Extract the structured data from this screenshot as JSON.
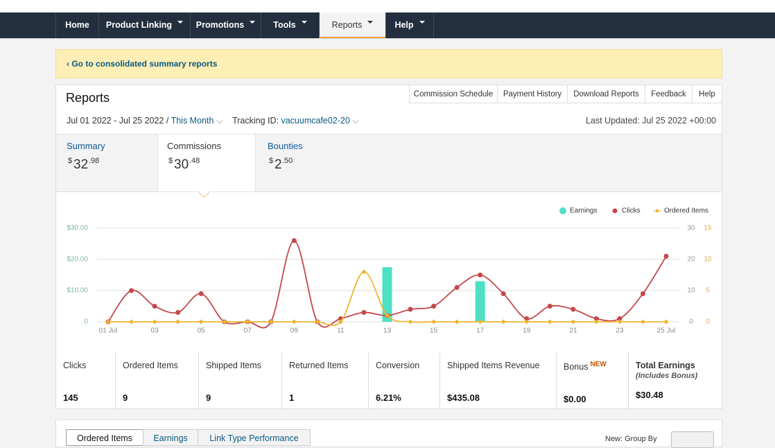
{
  "nav": {
    "items": [
      "Home",
      "Product Linking",
      "Promotions",
      "Tools",
      "Reports",
      "Help"
    ]
  },
  "banner": {
    "link": "‹ Go to consolidated summary reports"
  },
  "reports": {
    "title": "Reports",
    "links": [
      "Commission Schedule",
      "Payment History",
      "Download Reports",
      "Feedback",
      "Help"
    ],
    "date_range": "Jul 01 2022 - Jul 25 2022 /",
    "period": "This Month",
    "tracking_label": "Tracking ID:",
    "tracking_id": "vacuumcafe02-20",
    "last_updated": "Last Updated: Jul 25 2022 +00:00"
  },
  "summary": [
    {
      "name": "Summary",
      "currency": "$",
      "whole": "32",
      "cents": ".98"
    },
    {
      "name": "Commissions",
      "currency": "$",
      "whole": "30",
      "cents": ".48"
    },
    {
      "name": "Bounties",
      "currency": "$",
      "whole": "2",
      "cents": ".50"
    }
  ],
  "chart_data": {
    "type": "line",
    "categories": [
      "01 Jul",
      null,
      "03",
      null,
      "05",
      null,
      "07",
      null,
      "09",
      null,
      "11",
      null,
      "13",
      null,
      "15",
      null,
      "17",
      null,
      "19",
      null,
      "21",
      null,
      "23",
      null,
      "25 Jul"
    ],
    "series": [
      {
        "name": "Earnings",
        "type": "bar",
        "color": "#4ee0c4",
        "values": [
          0,
          0,
          0,
          0,
          0,
          0,
          0,
          0,
          0,
          0,
          0,
          0,
          17.5,
          0,
          0,
          0,
          13,
          0,
          0,
          0,
          0,
          0,
          0,
          0,
          0
        ]
      },
      {
        "name": "Clicks",
        "type": "line",
        "axis": "y2",
        "color": "#c4474b",
        "values": [
          0,
          10,
          5,
          3,
          9,
          0,
          0,
          0,
          26,
          0,
          1,
          3,
          2,
          4,
          5,
          11,
          15,
          9,
          1,
          5,
          4,
          1,
          1,
          9,
          21
        ]
      },
      {
        "name": "Ordered Items",
        "type": "line",
        "axis": "y3",
        "color": "#efb52f",
        "values": [
          0,
          0,
          0,
          0,
          0,
          0,
          0,
          0,
          0,
          0,
          0,
          8,
          1,
          0,
          0,
          0,
          0,
          0,
          0,
          0,
          0,
          0,
          0,
          0,
          0
        ]
      }
    ],
    "ylim": [
      0,
      30
    ],
    "yticks": [
      0,
      {
        "value": 10,
        "label": "$10.00"
      },
      {
        "value": 20,
        "label": "$20.00"
      },
      {
        "value": 30,
        "label": "$30.00"
      }
    ],
    "y2lim": [
      0,
      30
    ],
    "y2ticks": [
      0,
      10,
      20,
      30
    ],
    "y3lim": [
      0,
      15
    ],
    "y3ticks": [
      0,
      5,
      10,
      15
    ],
    "grid": true,
    "legend": "top-right"
  },
  "stats": [
    {
      "label": "Clicks",
      "value": "145"
    },
    {
      "label": "Ordered Items",
      "value": "9"
    },
    {
      "label": "Shipped Items",
      "value": "9"
    },
    {
      "label": "Returned Items",
      "value": "1"
    },
    {
      "label": "Conversion",
      "value": "6.21%"
    },
    {
      "label": "Shipped Items Revenue",
      "value": "$435.08"
    },
    {
      "label": "Bonus",
      "badge": "NEW",
      "value": "$0.00"
    },
    {
      "label": "Total Earnings",
      "note": "(Includes Bonus)",
      "value": "$30.48"
    }
  ],
  "bottom": {
    "tabs": [
      "Ordered Items",
      "Earnings",
      "Link Type Performance"
    ],
    "group_by": "New: Group By"
  }
}
